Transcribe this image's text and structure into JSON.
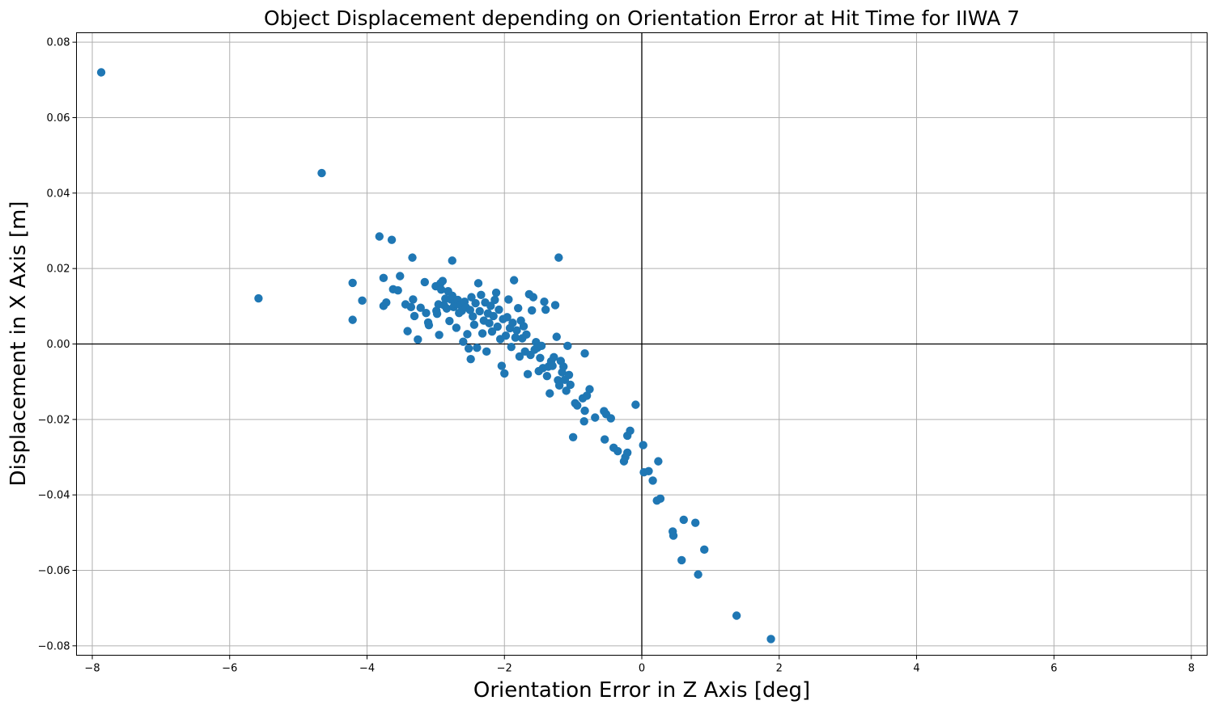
{
  "chart_data": {
    "type": "scatter",
    "title": "Object Displacement depending on Orientation Error at Hit Time for IIWA 7",
    "xlabel": "Orientation Error in Z Axis [deg]",
    "ylabel": "Displacement in X Axis [m]",
    "xlim": [
      -8.23,
      8.23
    ],
    "ylim": [
      -0.0825,
      0.0825
    ],
    "xticks": [
      -8,
      -6,
      -4,
      -2,
      0,
      2,
      4,
      6,
      8
    ],
    "xtick_labels": [
      "−8",
      "−6",
      "−4",
      "−2",
      "0",
      "2",
      "4",
      "6",
      "8"
    ],
    "yticks": [
      -0.08,
      -0.06,
      -0.04,
      -0.02,
      0.0,
      0.02,
      0.04,
      0.06,
      0.08
    ],
    "ytick_labels": [
      "−0.08",
      "−0.06",
      "−0.04",
      "−0.02",
      "0.00",
      "0.02",
      "0.04",
      "0.06",
      "0.08"
    ],
    "grid": true,
    "zero_lines": true,
    "marker_color": "#1f77b4",
    "series": [
      {
        "points": [
          [
            -7.87,
            0.072
          ],
          [
            -4.66,
            0.0453
          ],
          [
            -5.58,
            0.0121
          ],
          [
            -3.82,
            0.0285
          ],
          [
            -3.64,
            0.0276
          ],
          [
            -3.34,
            0.0229
          ],
          [
            -2.76,
            0.0221
          ],
          [
            -1.21,
            0.0229
          ],
          [
            -4.21,
            0.0162
          ],
          [
            -4.21,
            0.0064
          ],
          [
            -4.07,
            0.0115
          ],
          [
            -3.76,
            0.0175
          ],
          [
            -3.76,
            0.0101
          ],
          [
            -3.72,
            0.011
          ],
          [
            -3.62,
            0.0145
          ],
          [
            -3.55,
            0.0142
          ],
          [
            -3.52,
            0.018
          ],
          [
            -3.44,
            0.0105
          ],
          [
            -3.41,
            0.0034
          ],
          [
            -3.36,
            0.0098
          ],
          [
            -3.33,
            0.0118
          ],
          [
            -3.31,
            0.0074
          ],
          [
            -3.26,
            0.0012
          ],
          [
            -3.22,
            0.0096
          ],
          [
            -3.16,
            0.0164
          ],
          [
            -3.14,
            0.0082
          ],
          [
            -3.11,
            0.0057
          ],
          [
            -3.1,
            0.005
          ],
          [
            -3.0,
            0.0153
          ],
          [
            -2.99,
            0.0088
          ],
          [
            -2.98,
            0.008
          ],
          [
            -2.96,
            0.0105
          ],
          [
            -2.95,
            0.0024
          ],
          [
            -2.93,
            0.0161
          ],
          [
            -2.92,
            0.0144
          ],
          [
            -2.9,
            0.0167
          ],
          [
            -2.88,
            0.0103
          ],
          [
            -2.86,
            0.012
          ],
          [
            -2.84,
            0.0094
          ],
          [
            -2.82,
            0.014
          ],
          [
            -2.8,
            0.0061
          ],
          [
            -2.78,
            0.0118
          ],
          [
            -2.76,
            0.0128
          ],
          [
            -2.74,
            0.0098
          ],
          [
            -2.72,
            0.0107
          ],
          [
            -2.7,
            0.0043
          ],
          [
            -2.68,
            0.0117
          ],
          [
            -2.66,
            0.0082
          ],
          [
            -2.64,
            0.0103
          ],
          [
            -2.62,
            0.0088
          ],
          [
            -2.6,
            0.0006
          ],
          [
            -2.58,
            0.0112
          ],
          [
            -2.56,
            0.0097
          ],
          [
            -2.54,
            0.0026
          ],
          [
            -2.52,
            -0.0012
          ],
          [
            -2.5,
            0.009
          ],
          [
            -2.49,
            -0.004
          ],
          [
            -2.48,
            0.0124
          ],
          [
            -2.46,
            0.0073
          ],
          [
            -2.44,
            0.0051
          ],
          [
            -2.42,
            0.0108
          ],
          [
            -2.4,
            -0.001
          ],
          [
            -2.38,
            0.0161
          ],
          [
            -2.36,
            0.0087
          ],
          [
            -2.34,
            0.013
          ],
          [
            -2.32,
            0.0028
          ],
          [
            -2.3,
            0.0062
          ],
          [
            -2.28,
            0.011
          ],
          [
            -2.26,
            -0.002
          ],
          [
            -2.24,
            0.0081
          ],
          [
            -2.22,
            0.0055
          ],
          [
            -2.2,
            0.0101
          ],
          [
            -2.18,
            0.0033
          ],
          [
            -2.16,
            0.0074
          ],
          [
            -2.14,
            0.0117
          ],
          [
            -2.12,
            0.0136
          ],
          [
            -2.1,
            0.0046
          ],
          [
            -2.08,
            0.0091
          ],
          [
            -2.06,
            0.0013
          ],
          [
            -2.04,
            -0.0058
          ],
          [
            -2.02,
            0.0066
          ],
          [
            -2.0,
            -0.0078
          ],
          [
            -1.98,
            0.0022
          ],
          [
            -1.96,
            0.0071
          ],
          [
            -1.94,
            0.0118
          ],
          [
            -1.92,
            0.0042
          ],
          [
            -1.9,
            -0.0008
          ],
          [
            -1.88,
            0.0056
          ],
          [
            -1.86,
            0.0169
          ],
          [
            -1.84,
            0.0017
          ],
          [
            -1.82,
            0.0036
          ],
          [
            -1.8,
            0.0095
          ],
          [
            -1.78,
            -0.0033
          ],
          [
            -1.76,
            0.0062
          ],
          [
            -1.74,
            0.0015
          ],
          [
            -1.72,
            0.0047
          ],
          [
            -1.7,
            -0.002
          ],
          [
            -1.68,
            0.0025
          ],
          [
            -1.66,
            -0.008
          ],
          [
            -1.64,
            0.0132
          ],
          [
            -1.62,
            -0.0029
          ],
          [
            -1.6,
            0.0089
          ],
          [
            -1.58,
            0.0124
          ],
          [
            -1.56,
            -0.0015
          ],
          [
            -1.54,
            0.0005
          ],
          [
            -1.52,
            -0.001
          ],
          [
            -1.5,
            -0.0072
          ],
          [
            -1.48,
            -0.0037
          ],
          [
            -1.46,
            -0.0005
          ],
          [
            -1.44,
            -0.0064
          ],
          [
            -1.42,
            0.0112
          ],
          [
            -1.4,
            0.0091
          ],
          [
            -1.38,
            -0.0085
          ],
          [
            -1.36,
            -0.006
          ],
          [
            -1.34,
            -0.0131
          ],
          [
            -1.32,
            -0.0046
          ],
          [
            -1.3,
            -0.0058
          ],
          [
            -1.28,
            -0.0035
          ],
          [
            -1.26,
            0.0103
          ],
          [
            -1.24,
            0.0019
          ],
          [
            -1.22,
            -0.0096
          ],
          [
            -1.2,
            -0.011
          ],
          [
            -1.18,
            -0.0045
          ],
          [
            -1.16,
            -0.0075
          ],
          [
            -1.14,
            -0.006
          ],
          [
            -1.12,
            -0.0095
          ],
          [
            -1.1,
            -0.0124
          ],
          [
            -1.08,
            -0.0005
          ],
          [
            -1.06,
            -0.0082
          ],
          [
            -1.04,
            -0.0108
          ],
          [
            -1.0,
            -0.0247
          ],
          [
            -0.97,
            -0.0157
          ],
          [
            -0.94,
            -0.0163
          ],
          [
            -0.86,
            -0.0144
          ],
          [
            -0.84,
            -0.0205
          ],
          [
            -0.83,
            -0.0177
          ],
          [
            -0.83,
            -0.0025
          ],
          [
            -0.8,
            -0.0137
          ],
          [
            -0.76,
            -0.012
          ],
          [
            -0.68,
            -0.0195
          ],
          [
            -0.55,
            -0.0178
          ],
          [
            -0.54,
            -0.0253
          ],
          [
            -0.52,
            -0.0186
          ],
          [
            -0.45,
            -0.0197
          ],
          [
            -0.41,
            -0.0275
          ],
          [
            -0.35,
            -0.0284
          ],
          [
            -0.26,
            -0.0311
          ],
          [
            -0.24,
            -0.03
          ],
          [
            -0.21,
            -0.0243
          ],
          [
            -0.21,
            -0.0288
          ],
          [
            -0.17,
            -0.023
          ],
          [
            -0.09,
            -0.0161
          ],
          [
            0.02,
            -0.0268
          ],
          [
            0.03,
            -0.034
          ],
          [
            0.1,
            -0.0337
          ],
          [
            0.16,
            -0.0362
          ],
          [
            0.22,
            -0.0415
          ],
          [
            0.24,
            -0.0311
          ],
          [
            0.27,
            -0.041
          ],
          [
            0.45,
            -0.0497
          ],
          [
            0.46,
            -0.0508
          ],
          [
            0.58,
            -0.0573
          ],
          [
            0.61,
            -0.0466
          ],
          [
            0.78,
            -0.0474
          ],
          [
            0.82,
            -0.0611
          ],
          [
            0.91,
            -0.0545
          ],
          [
            1.38,
            -0.072
          ],
          [
            1.88,
            -0.0782
          ]
        ]
      }
    ]
  }
}
